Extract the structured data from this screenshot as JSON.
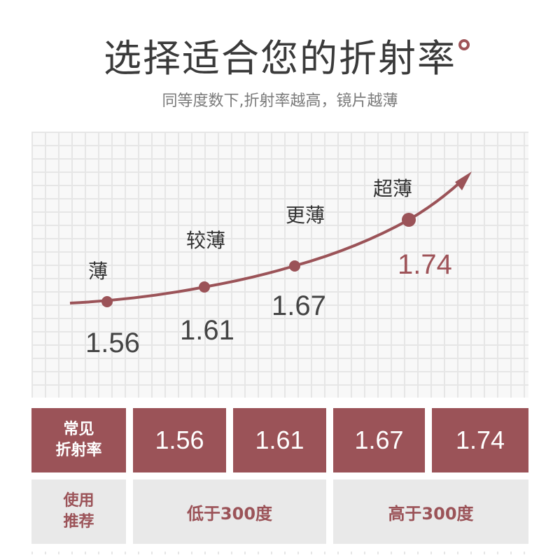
{
  "header": {
    "title": "选择适合您的折射率",
    "subtitle": "同等度数下,折射率越高，镜片越薄"
  },
  "chart": {
    "points": [
      {
        "label": "薄",
        "value": "1.56"
      },
      {
        "label": "较薄",
        "value": "1.61"
      },
      {
        "label": "更薄",
        "value": "1.67"
      },
      {
        "label": "超薄",
        "value": "1.74"
      }
    ]
  },
  "table": {
    "row1": {
      "header": "常见\n折射率",
      "values": [
        "1.56",
        "1.61",
        "1.67",
        "1.74"
      ]
    },
    "row2": {
      "header": "使用\n推荐",
      "groups": [
        "低于300度",
        "高于300度"
      ]
    }
  },
  "colors": {
    "accent": "#9b5358",
    "light_cell": "#e9e9e9",
    "grid": "#e6e6e6",
    "text": "#3a3a3a"
  }
}
